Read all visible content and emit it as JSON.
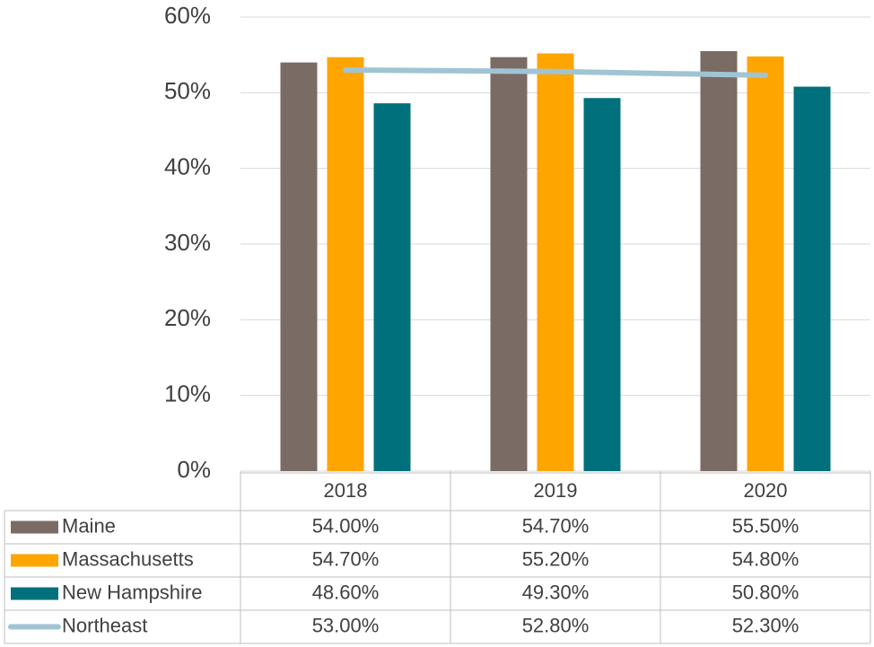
{
  "chart_data": {
    "type": "bar",
    "categories": [
      "2018",
      "2019",
      "2020"
    ],
    "series": [
      {
        "name": "Maine",
        "type": "bar",
        "color": "#7a6b64",
        "values": [
          54.0,
          54.7,
          55.5
        ],
        "value_labels": [
          "54.00%",
          "54.70%",
          "55.50%"
        ]
      },
      {
        "name": "Massachusetts",
        "type": "bar",
        "color": "#ffa500",
        "values": [
          54.7,
          55.2,
          54.8
        ],
        "value_labels": [
          "54.70%",
          "55.20%",
          "54.80%"
        ]
      },
      {
        "name": "New Hampshire",
        "type": "bar",
        "color": "#00717c",
        "values": [
          48.6,
          49.3,
          50.8
        ],
        "value_labels": [
          "48.60%",
          "49.30%",
          "50.80%"
        ]
      },
      {
        "name": "Northeast",
        "type": "line",
        "color": "#a0c4d4",
        "values": [
          53.0,
          52.8,
          52.3
        ],
        "value_labels": [
          "53.00%",
          "52.80%",
          "52.30%"
        ]
      }
    ],
    "ylim": [
      0,
      60
    ],
    "yticks": [
      {
        "value": 0,
        "label": "0%"
      },
      {
        "value": 10,
        "label": "10%"
      },
      {
        "value": 20,
        "label": "20%"
      },
      {
        "value": 30,
        "label": "30%"
      },
      {
        "value": 40,
        "label": "40%"
      },
      {
        "value": 50,
        "label": "50%"
      },
      {
        "value": 60,
        "label": "60%"
      }
    ],
    "grid": true,
    "data_table": true
  }
}
